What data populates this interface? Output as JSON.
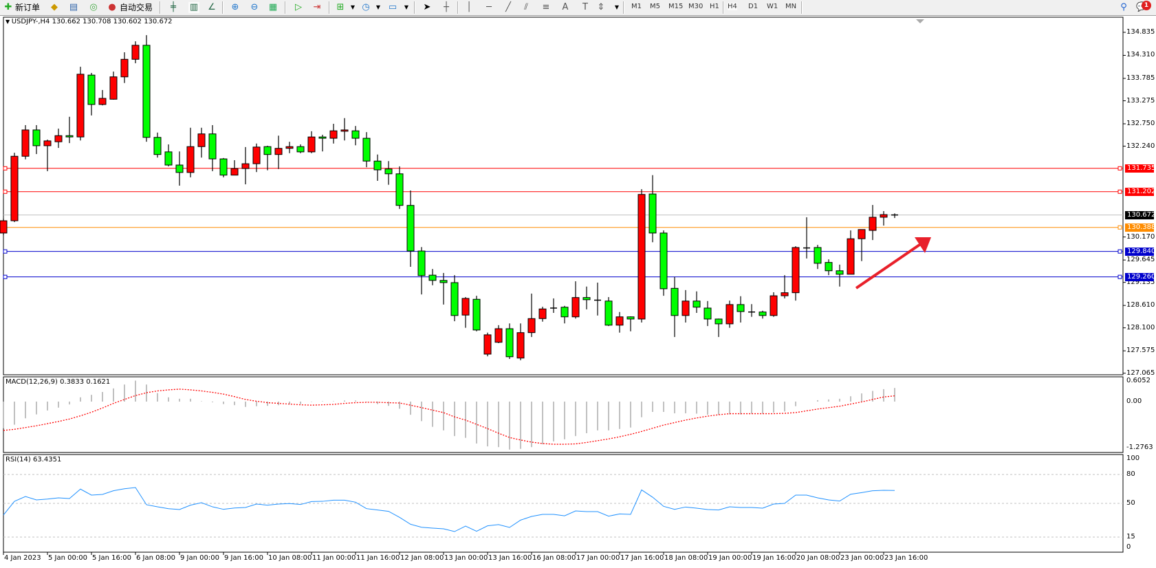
{
  "toolbar": {
    "new_order_label": "新订单",
    "auto_trade_label": "自动交易",
    "timeframes": [
      "M1",
      "M5",
      "M15",
      "M30",
      "H1",
      "H4",
      "D1",
      "W1",
      "MN"
    ],
    "active_timeframe": "H4",
    "notification_count": "1",
    "icons": [
      "new-order-icon",
      "gold-icon",
      "profile-icon",
      "signal-icon",
      "auto-trade-icon",
      "bar-chart-icon",
      "candlestick-icon",
      "line-chart-icon",
      "zoom-in-icon",
      "zoom-out-icon",
      "tile-windows-icon",
      "auto-scroll-icon",
      "chart-shift-icon",
      "indicators-icon",
      "period-clock-icon",
      "template-icon",
      "cursor-icon",
      "crosshair-icon",
      "vertical-line-icon",
      "horizontal-line-icon",
      "trendline-icon",
      "fibo-channel-icon",
      "fibo-icon",
      "text-icon",
      "text-label-icon",
      "arrows-icon",
      "search-icon",
      "chat-icon"
    ]
  },
  "chart": {
    "header": "USDJPY-,H4  130.662 130.708 130.602 130.672",
    "macd_label": "MACD(12,26,9) 0.3833 0.1621",
    "rsi_label": "RSI(14) 63.4351"
  },
  "chart_data": {
    "type": "candlestick",
    "symbol": "USDJPY-",
    "timeframe": "H4",
    "colors": {
      "bull": "#ff0000",
      "bear": "#00ff00",
      "macd_hist": "#c0c0c0",
      "macd_signal": "#ff0000",
      "rsi": "#1e90ff"
    },
    "price_axis": {
      "ticks": [
        "134.835",
        "134.310",
        "133.785",
        "133.275",
        "132.750",
        "132.240",
        "130.170",
        "129.645",
        "129.135",
        "128.610",
        "128.100",
        "127.575",
        "127.065"
      ],
      "range": [
        127.065,
        134.835
      ]
    },
    "time_axis": [
      "4 Jan 2023",
      "5 Jan 00:00",
      "5 Jan 16:00",
      "6 Jan 08:00",
      "9 Jan 00:00",
      "9 Jan 16:00",
      "10 Jan 08:00",
      "11 Jan 00:00",
      "11 Jan 16:00",
      "12 Jan 08:00",
      "13 Jan 00:00",
      "13 Jan 16:00",
      "16 Jan 08:00",
      "17 Jan 00:00",
      "17 Jan 16:00",
      "18 Jan 08:00",
      "19 Jan 00:00",
      "19 Jan 16:00",
      "20 Jan 08:00",
      "23 Jan 00:00",
      "23 Jan 16:00"
    ],
    "hlines": [
      {
        "price": "131.735",
        "color": "#ff0000"
      },
      {
        "price": "131.202",
        "color": "#ff0000"
      },
      {
        "price": "130.672",
        "color": "#c0c0c0",
        "label_bg": "#000000"
      },
      {
        "price": "130.388",
        "color": "#ff8c00"
      },
      {
        "price": "129.840",
        "color": "#0000cc"
      },
      {
        "price": "129.260",
        "color": "#0000cc"
      }
    ],
    "ohlc": [
      [
        130.26,
        130.59,
        130.21,
        130.54
      ],
      [
        130.54,
        132.09,
        130.51,
        132.01
      ],
      [
        132.01,
        132.72,
        131.94,
        132.61
      ],
      [
        132.61,
        132.72,
        132.06,
        132.25
      ],
      [
        132.25,
        132.39,
        131.67,
        132.36
      ],
      [
        132.34,
        132.64,
        132.2,
        132.48
      ],
      [
        132.48,
        132.91,
        132.31,
        132.45
      ],
      [
        132.45,
        134.05,
        132.37,
        133.88
      ],
      [
        133.86,
        133.91,
        132.94,
        133.19
      ],
      [
        133.19,
        133.52,
        133.17,
        133.33
      ],
      [
        133.31,
        133.94,
        133.3,
        133.82
      ],
      [
        133.82,
        134.38,
        133.68,
        134.22
      ],
      [
        134.22,
        134.63,
        134.13,
        134.54
      ],
      [
        134.54,
        134.77,
        132.34,
        132.44
      ],
      [
        132.44,
        132.55,
        131.98,
        132.05
      ],
      [
        132.11,
        132.28,
        131.78,
        131.81
      ],
      [
        131.81,
        132.12,
        131.34,
        131.64
      ],
      [
        131.64,
        132.66,
        131.53,
        132.23
      ],
      [
        132.23,
        132.66,
        131.98,
        132.52
      ],
      [
        132.52,
        132.72,
        131.67,
        131.95
      ],
      [
        131.95,
        131.97,
        131.53,
        131.58
      ],
      [
        131.58,
        131.92,
        131.58,
        131.73
      ],
      [
        131.73,
        132.22,
        131.37,
        131.84
      ],
      [
        131.84,
        132.3,
        131.65,
        132.22
      ],
      [
        132.23,
        132.25,
        131.69,
        132.05
      ],
      [
        132.05,
        132.48,
        131.72,
        132.19
      ],
      [
        132.19,
        132.34,
        132.08,
        132.23
      ],
      [
        132.23,
        132.28,
        132.08,
        132.11
      ],
      [
        132.11,
        132.58,
        132.08,
        132.45
      ],
      [
        132.45,
        132.5,
        132.12,
        132.42
      ],
      [
        132.42,
        132.75,
        132.3,
        132.59
      ],
      [
        132.58,
        132.88,
        132.37,
        132.61
      ],
      [
        132.59,
        132.7,
        132.26,
        132.42
      ],
      [
        132.42,
        132.56,
        131.76,
        131.9
      ],
      [
        131.9,
        132.05,
        131.45,
        131.7
      ],
      [
        131.72,
        131.9,
        131.36,
        131.61
      ],
      [
        131.61,
        131.78,
        130.81,
        130.89
      ],
      [
        130.89,
        131.23,
        129.49,
        129.85
      ],
      [
        129.85,
        129.94,
        128.86,
        129.29
      ],
      [
        129.3,
        129.44,
        129.07,
        129.18
      ],
      [
        129.18,
        129.35,
        128.63,
        129.13
      ],
      [
        129.13,
        129.3,
        128.25,
        128.38
      ],
      [
        128.39,
        128.8,
        128.1,
        128.77
      ],
      [
        128.75,
        128.83,
        128.02,
        128.05
      ],
      [
        127.5,
        127.99,
        127.45,
        127.94
      ],
      [
        127.77,
        128.16,
        127.75,
        128.08
      ],
      [
        128.08,
        128.2,
        127.39,
        127.44
      ],
      [
        127.41,
        128.2,
        127.36,
        127.99
      ],
      [
        127.99,
        128.88,
        127.89,
        128.31
      ],
      [
        128.31,
        128.58,
        128.24,
        128.53
      ],
      [
        128.53,
        128.77,
        128.44,
        128.55
      ],
      [
        128.57,
        128.6,
        128.2,
        128.35
      ],
      [
        128.35,
        129.16,
        128.31,
        128.79
      ],
      [
        128.79,
        129.04,
        128.52,
        128.74
      ],
      [
        128.72,
        129.13,
        128.38,
        128.73
      ],
      [
        128.71,
        128.8,
        128.14,
        128.16
      ],
      [
        128.16,
        128.46,
        127.99,
        128.35
      ],
      [
        128.35,
        128.36,
        128.02,
        128.3
      ],
      [
        128.3,
        131.26,
        128.22,
        131.14
      ],
      [
        131.15,
        131.58,
        130.05,
        130.26
      ],
      [
        130.26,
        130.32,
        128.83,
        128.99
      ],
      [
        129.0,
        129.26,
        127.89,
        128.38
      ],
      [
        128.38,
        128.96,
        128.22,
        128.71
      ],
      [
        128.71,
        128.93,
        128.44,
        128.57
      ],
      [
        128.55,
        128.71,
        128.14,
        128.3
      ],
      [
        128.3,
        128.31,
        127.89,
        128.19
      ],
      [
        128.19,
        128.72,
        128.1,
        128.63
      ],
      [
        128.63,
        128.82,
        128.22,
        128.47
      ],
      [
        128.46,
        128.64,
        128.35,
        128.46
      ],
      [
        128.46,
        128.49,
        128.31,
        128.38
      ],
      [
        128.38,
        128.91,
        128.35,
        128.83
      ],
      [
        128.83,
        129.3,
        128.77,
        128.9
      ],
      [
        128.9,
        129.96,
        128.72,
        129.93
      ],
      [
        129.92,
        130.62,
        129.68,
        129.91
      ],
      [
        129.93,
        129.99,
        129.44,
        129.57
      ],
      [
        129.59,
        129.66,
        129.3,
        129.4
      ],
      [
        129.4,
        129.54,
        129.04,
        129.32
      ],
      [
        129.32,
        130.32,
        129.32,
        130.13
      ],
      [
        130.13,
        130.34,
        129.62,
        130.34
      ],
      [
        130.32,
        130.9,
        130.1,
        130.62
      ],
      [
        130.62,
        130.76,
        130.43,
        130.68
      ],
      [
        130.662,
        130.708,
        130.602,
        130.672
      ]
    ],
    "macd": {
      "axis": [
        "0.6052",
        "0.00",
        "-1.2763"
      ],
      "histogram": [
        -0.75,
        -0.65,
        -0.47,
        -0.36,
        -0.25,
        -0.17,
        -0.08,
        0.12,
        0.19,
        0.27,
        0.37,
        0.48,
        0.59,
        0.48,
        0.24,
        0.12,
        0.08,
        0.08,
        0.01,
        -0.02,
        -0.07,
        -0.1,
        -0.15,
        -0.13,
        -0.12,
        -0.1,
        -0.08,
        -0.07,
        -0.01,
        0.01,
        0.01,
        0.03,
        0.03,
        -0.01,
        -0.07,
        -0.12,
        -0.2,
        -0.37,
        -0.55,
        -0.71,
        -0.81,
        -0.97,
        -1.02,
        -1.18,
        -1.26,
        -1.28,
        -1.35,
        -1.33,
        -1.28,
        -1.2,
        -1.12,
        -1.06,
        -0.97,
        -0.89,
        -0.81,
        -0.81,
        -0.77,
        -0.73,
        -0.44,
        -0.29,
        -0.29,
        -0.33,
        -0.33,
        -0.34,
        -0.37,
        -0.37,
        -0.36,
        -0.36,
        -0.34,
        -0.34,
        -0.31,
        -0.28,
        -0.13,
        0.0,
        0.04,
        0.06,
        0.08,
        0.15,
        0.23,
        0.3,
        0.35,
        0.3833
      ],
      "signal": [
        -0.81,
        -0.78,
        -0.73,
        -0.68,
        -0.62,
        -0.56,
        -0.49,
        -0.4,
        -0.3,
        -0.18,
        -0.05,
        0.06,
        0.17,
        0.25,
        0.3,
        0.33,
        0.35,
        0.33,
        0.3,
        0.26,
        0.21,
        0.14,
        0.06,
        0.01,
        -0.03,
        -0.05,
        -0.07,
        -0.09,
        -0.1,
        -0.09,
        -0.08,
        -0.05,
        -0.03,
        -0.02,
        -0.02,
        -0.03,
        -0.04,
        -0.1,
        -0.17,
        -0.24,
        -0.31,
        -0.43,
        -0.52,
        -0.64,
        -0.76,
        -0.89,
        -1.01,
        -1.08,
        -1.14,
        -1.18,
        -1.2,
        -1.2,
        -1.19,
        -1.15,
        -1.1,
        -1.05,
        -0.99,
        -0.92,
        -0.84,
        -0.75,
        -0.66,
        -0.59,
        -0.52,
        -0.46,
        -0.41,
        -0.37,
        -0.34,
        -0.34,
        -0.34,
        -0.34,
        -0.34,
        -0.33,
        -0.31,
        -0.26,
        -0.21,
        -0.17,
        -0.13,
        -0.07,
        -0.01,
        0.06,
        0.13,
        0.1621
      ]
    },
    "rsi": {
      "levels": [
        "100",
        "80",
        "50",
        "15",
        "0"
      ],
      "values": [
        37.9,
        52.1,
        57.1,
        53.6,
        54.5,
        55.7,
        55.0,
        64.8,
        58.6,
        59.3,
        63.1,
        65.2,
        66.4,
        48.6,
        46.4,
        44.5,
        43.6,
        48.1,
        50.7,
        46.4,
        43.8,
        45.2,
        45.7,
        49.3,
        48.1,
        49.3,
        49.8,
        48.8,
        51.9,
        52.1,
        53.3,
        53.3,
        51.2,
        44.5,
        43.1,
        41.7,
        35.5,
        28.3,
        25.2,
        24.3,
        23.6,
        20.7,
        26.4,
        21.0,
        26.7,
        27.9,
        25.0,
        32.6,
        36.4,
        38.6,
        38.6,
        37.1,
        42.1,
        41.4,
        41.4,
        36.7,
        39.0,
        38.6,
        64.0,
        56.4,
        46.9,
        43.8,
        46.2,
        45.0,
        43.6,
        43.1,
        46.4,
        45.7,
        45.7,
        45.0,
        49.3,
        50.0,
        58.6,
        58.6,
        55.7,
        53.6,
        52.4,
        59.5,
        61.2,
        63.1,
        63.6,
        63.4351
      ]
    },
    "annotation": {
      "type": "arrow",
      "color": "#e8202a",
      "direction": "up-right"
    }
  }
}
